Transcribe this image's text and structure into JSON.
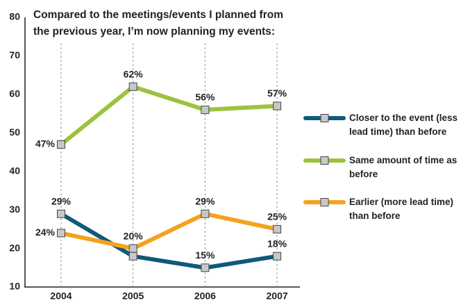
{
  "chart_data": {
    "type": "line",
    "title": [
      "Compared to the meetings/events I planned from",
      "the previous year, I’m now planning my events:"
    ],
    "categories": [
      "2004",
      "2005",
      "2006",
      "2007"
    ],
    "series": [
      {
        "name": "Closer to the event (less lead time) than before",
        "color": "#0e5a7a",
        "values": [
          29,
          18,
          15,
          18
        ],
        "value_labels": [
          "29%",
          null,
          "15%",
          "18%"
        ]
      },
      {
        "name": "Same amount of time as before",
        "color": "#9bc33d",
        "values": [
          47,
          62,
          56,
          57
        ],
        "value_labels": [
          "47%",
          "62%",
          "56%",
          "57%"
        ]
      },
      {
        "name": "Earlier (more lead time) than before",
        "color": "#f6a21c",
        "values": [
          24,
          20,
          29,
          25
        ],
        "value_labels": [
          "24%",
          "20%",
          "29%",
          "25%"
        ]
      }
    ],
    "ylim": [
      10,
      80
    ],
    "yticks": [
      10,
      20,
      30,
      40,
      50,
      60,
      70,
      80
    ],
    "grid": "x"
  }
}
